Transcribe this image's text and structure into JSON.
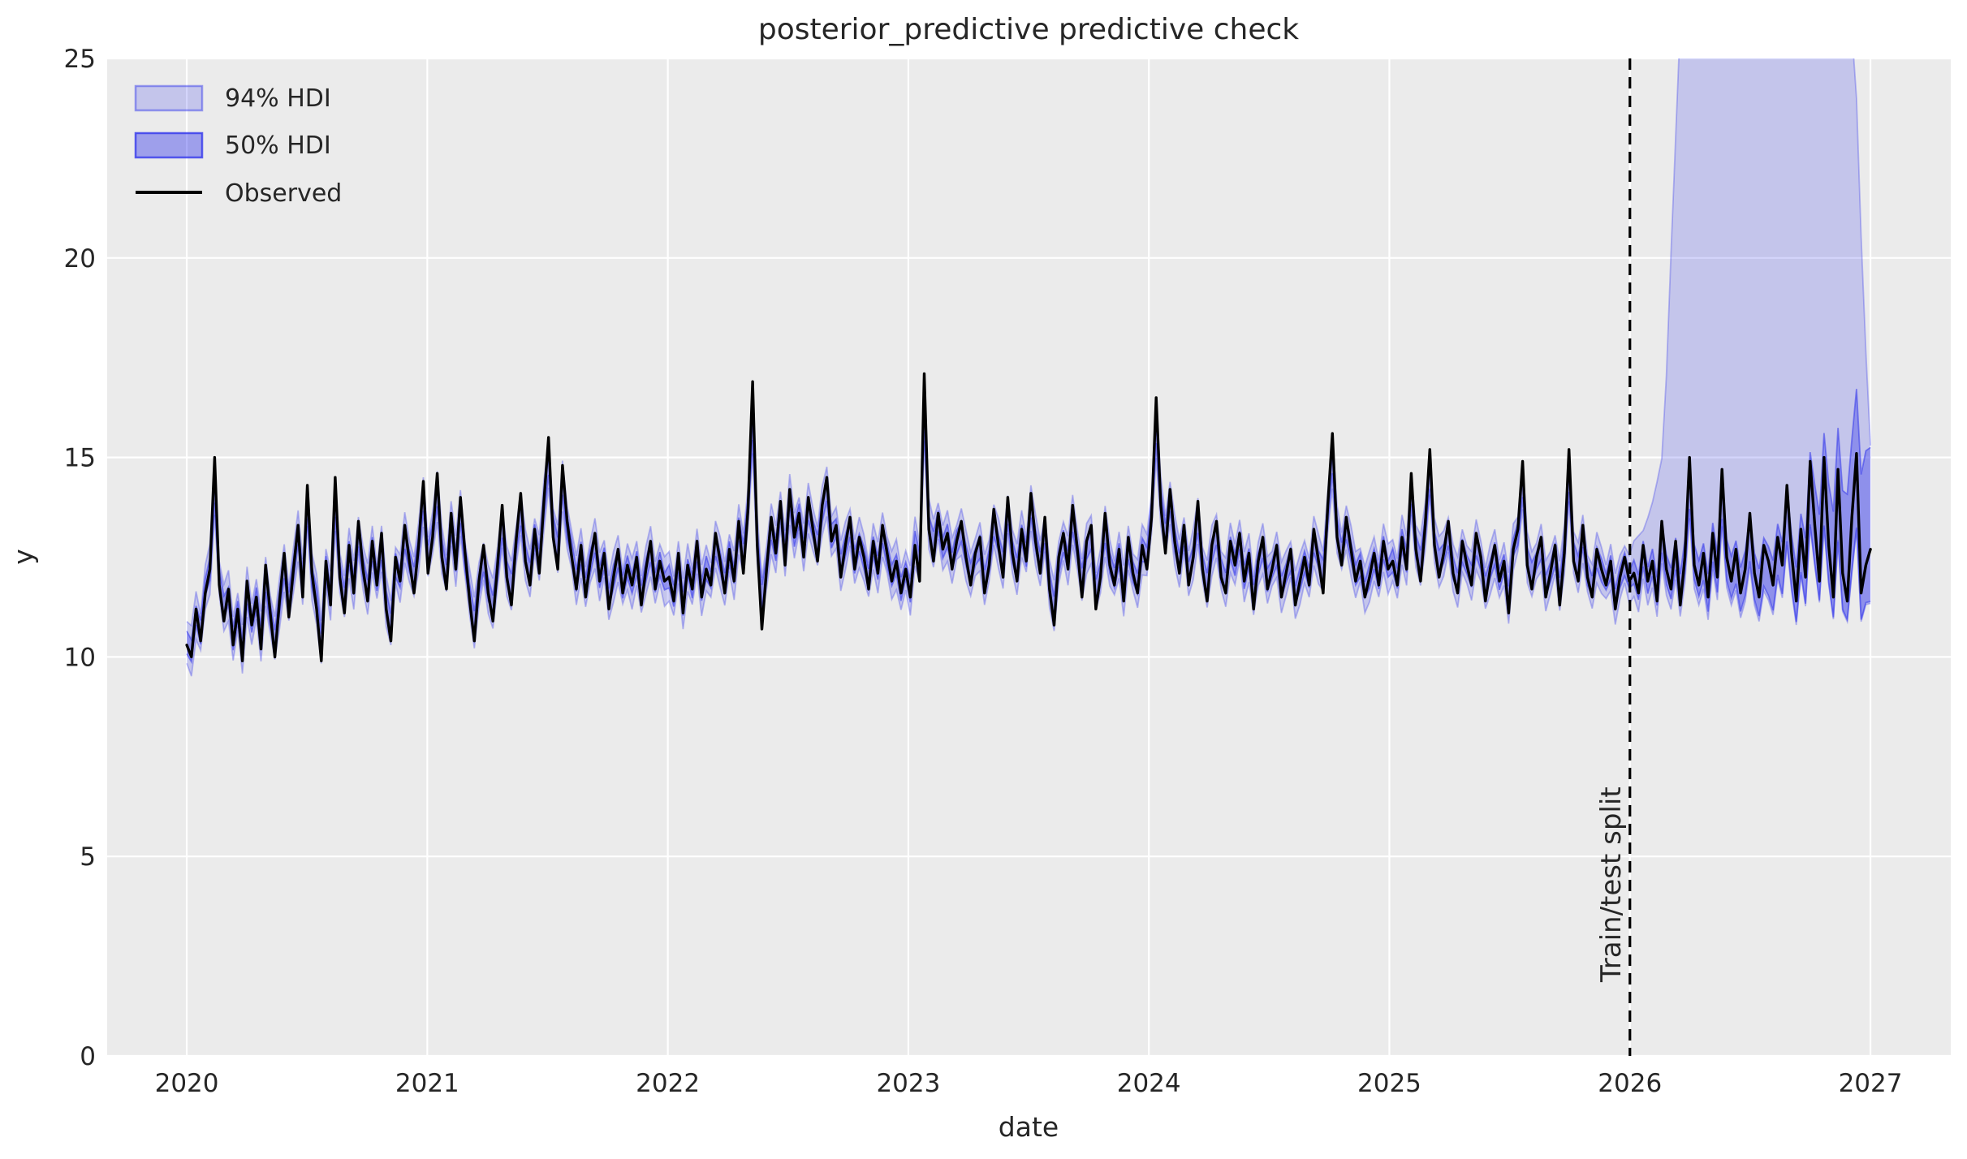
{
  "figure": {
    "title": "posterior_predictive predictive check",
    "background_color": "#ffffff",
    "axes_background_color": "#ebebeb",
    "grid_color": "#ffffff",
    "text_color": "#262626",
    "accent_color": "#2a2eec",
    "observed_color": "#000000",
    "hdi94_fill_opacity": 0.2,
    "hdi50_fill_opacity": 0.35,
    "hdi94_edge_opacity": 0.3,
    "hdi50_edge_opacity": 0.5,
    "legend_swatch_94_opacity": 0.2,
    "legend_swatch_50_opacity": 0.4
  },
  "legend": {
    "items": [
      {
        "label": "94% HDI",
        "type": "patch"
      },
      {
        "label": "50% HDI",
        "type": "patch"
      },
      {
        "label": "Observed",
        "type": "line"
      }
    ]
  },
  "annotations": {
    "train_test_split": {
      "label": "Train/test split",
      "x": 2026.0,
      "line_style": "dashed",
      "line_color": "#000000"
    }
  },
  "chart_data": {
    "type": "line",
    "title": "posterior_predictive predictive check",
    "xlabel": "date",
    "ylabel": "y",
    "xlim": [
      2019.669,
      2027.334
    ],
    "ylim": [
      0,
      25
    ],
    "xticks": [
      2020,
      2021,
      2022,
      2023,
      2024,
      2025,
      2026,
      2027
    ],
    "yticks": [
      0,
      5,
      10,
      15,
      20,
      25
    ],
    "grid": true,
    "legend_position": "upper-left",
    "x_start": 2020.0,
    "x_step_years": 0.019284,
    "observed": [
      10.3,
      10.0,
      11.2,
      10.4,
      11.6,
      12.2,
      15.0,
      11.8,
      10.9,
      11.7,
      10.3,
      11.2,
      9.9,
      11.9,
      10.8,
      11.5,
      10.2,
      12.3,
      11.1,
      10.0,
      11.4,
      12.6,
      11.0,
      12.2,
      13.3,
      11.5,
      14.3,
      12.1,
      11.2,
      9.9,
      12.4,
      11.3,
      14.5,
      12.0,
      11.1,
      12.8,
      11.6,
      13.4,
      12.2,
      11.4,
      12.9,
      11.8,
      13.1,
      11.2,
      10.4,
      12.5,
      11.9,
      13.3,
      12.4,
      11.6,
      12.8,
      14.4,
      12.1,
      13.0,
      14.6,
      12.5,
      11.7,
      13.6,
      12.2,
      14.0,
      12.6,
      11.4,
      10.4,
      11.9,
      12.8,
      11.6,
      10.9,
      12.3,
      13.8,
      12.0,
      11.3,
      12.9,
      14.1,
      12.4,
      11.8,
      13.2,
      12.1,
      13.9,
      15.5,
      13.0,
      12.2,
      14.8,
      13.4,
      12.5,
      11.7,
      12.8,
      11.5,
      12.4,
      13.1,
      11.9,
      12.6,
      11.2,
      12.0,
      12.7,
      11.6,
      12.3,
      11.8,
      12.5,
      11.3,
      12.2,
      12.9,
      11.7,
      12.4,
      11.9,
      12.0,
      11.4,
      12.6,
      11.1,
      12.3,
      11.7,
      12.9,
      11.5,
      12.2,
      11.8,
      13.1,
      12.4,
      11.6,
      12.7,
      11.9,
      13.4,
      12.1,
      13.7,
      16.9,
      12.8,
      10.7,
      12.2,
      13.5,
      12.6,
      13.9,
      12.3,
      14.2,
      13.0,
      13.6,
      12.5,
      14.0,
      13.2,
      12.4,
      13.8,
      14.5,
      12.9,
      13.3,
      12.0,
      12.8,
      13.5,
      12.2,
      13.0,
      12.5,
      11.7,
      12.9,
      12.1,
      13.3,
      12.6,
      11.9,
      12.4,
      11.6,
      12.2,
      11.5,
      12.8,
      11.9,
      17.1,
      13.2,
      12.4,
      13.6,
      12.7,
      13.1,
      12.2,
      12.9,
      13.4,
      12.5,
      11.8,
      12.6,
      13.0,
      11.6,
      12.3,
      13.7,
      12.8,
      12.0,
      14.0,
      12.6,
      11.9,
      13.2,
      12.4,
      14.1,
      12.9,
      12.1,
      13.5,
      11.7,
      10.8,
      12.5,
      13.1,
      12.2,
      13.8,
      12.7,
      11.5,
      12.9,
      13.3,
      11.2,
      12.0,
      13.6,
      12.3,
      11.8,
      12.7,
      11.4,
      13.0,
      12.1,
      11.6,
      12.8,
      12.2,
      13.5,
      16.5,
      13.8,
      12.6,
      14.2,
      12.9,
      12.1,
      13.3,
      11.8,
      12.5,
      13.9,
      12.2,
      11.4,
      12.8,
      13.4,
      12.0,
      11.6,
      12.9,
      12.3,
      13.1,
      11.9,
      12.6,
      11.2,
      12.4,
      13.0,
      11.7,
      12.2,
      12.8,
      11.5,
      12.1,
      12.7,
      11.3,
      11.9,
      12.5,
      11.8,
      13.2,
      12.4,
      11.6,
      13.8,
      15.6,
      13.0,
      12.3,
      13.5,
      12.7,
      11.9,
      12.4,
      11.5,
      12.0,
      12.6,
      11.8,
      12.9,
      12.2,
      12.4,
      11.8,
      13.0,
      12.2,
      14.6,
      12.7,
      11.9,
      13.3,
      15.2,
      12.8,
      12.0,
      12.6,
      13.4,
      12.1,
      11.6,
      12.9,
      12.3,
      11.8,
      13.1,
      12.5,
      11.4,
      12.2,
      12.8,
      11.9,
      12.4,
      11.1,
      12.7,
      13.2,
      14.9,
      12.3,
      11.7,
      12.5,
      13.0,
      11.5,
      12.1,
      12.8,
      11.3,
      12.6,
      15.2,
      12.4,
      11.9,
      13.3,
      12.0,
      11.5,
      12.7,
      12.2,
      11.8,
      12.4,
      11.2,
      12.0,
      12.5,
      11.9,
      12.1,
      11.6,
      12.8,
      11.9,
      12.4,
      11.4,
      13.4,
      12.2,
      11.7,
      12.9,
      11.3,
      12.5,
      15.0,
      12.3,
      11.8,
      12.6,
      11.5,
      13.1,
      12.0,
      14.7,
      12.5,
      11.9,
      12.7,
      11.6,
      12.2,
      13.6,
      12.1,
      11.5,
      12.8,
      12.4,
      11.8,
      13.0,
      12.3,
      14.3,
      12.6,
      11.4,
      13.2,
      12.0,
      14.9,
      13.3,
      11.9,
      15.0,
      12.8,
      11.5,
      14.7,
      12.1,
      11.4,
      13.5,
      15.1,
      11.6,
      12.3,
      12.7
    ],
    "hdi_bands": {
      "description": "HDI bands estimated from pixels: in-sample bands hug the observed series; after the train/test split at 2026.0 the 94% band fans out above the top of the axes and returns to ~15.3 at 2027.0.",
      "forecast_start": 2026.0,
      "train": {
        "hdi94_halfwidth": 0.42,
        "hdi94_halfwidth_jitter": 0.22,
        "hdi50_halfwidth": 0.2,
        "hdi50_halfwidth_jitter": 0.1,
        "center_obs_weight": 0.68,
        "smooth_window": 5
      },
      "forecast": {
        "hdi94_upper_envelope": [
          [
            2026.0,
            12.8
          ],
          [
            2026.06,
            13.2
          ],
          [
            2026.1,
            14.0
          ],
          [
            2026.14,
            15.2
          ],
          [
            2026.17,
            20.0
          ],
          [
            2026.21,
            26.0
          ],
          [
            2026.35,
            28.5
          ],
          [
            2026.6,
            29.0
          ],
          [
            2026.9,
            26.5
          ],
          [
            2026.935,
            25.3
          ],
          [
            2026.97,
            19.0
          ],
          [
            2027.0,
            15.3
          ]
        ],
        "hdi94_lower_base": 0.6,
        "hdi94_lower_growth_per_year": 0.6,
        "hdi50_upper_base": 0.3,
        "hdi50_upper_growth_per_year": 0.18,
        "hdi50_upper_flare_start": 2026.7,
        "hdi50_upper_flare_rate": 7.8,
        "hdi50_lower_base": 0.28,
        "hdi50_lower_growth_per_year": 0.95
      }
    }
  }
}
